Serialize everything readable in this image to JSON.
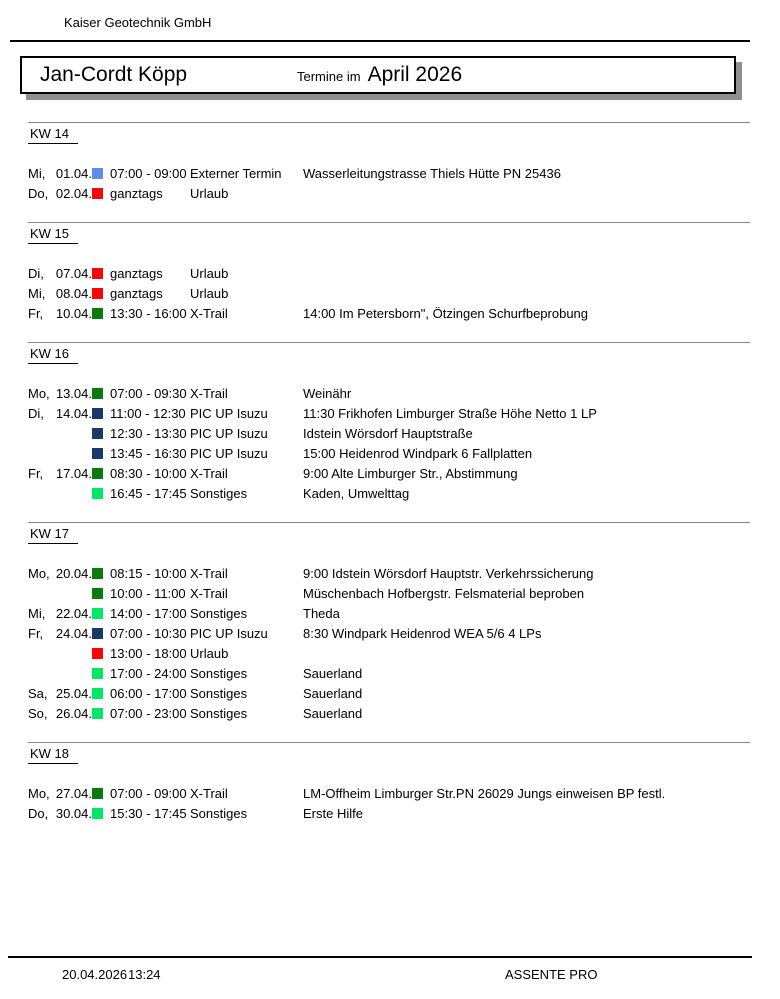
{
  "header": {
    "company": "Kaiser Geotechnik GmbH",
    "person": "Jan-Cordt Köpp",
    "title_prefix": "Termine im",
    "title_month": "April 2026"
  },
  "footer": {
    "print_date": "20.04.2026",
    "print_time": "13:24",
    "app_name": "ASSENTE PRO"
  },
  "colors": {
    "externer_termin": "#5b8dee",
    "urlaub": "#fa0505",
    "x_trail": "#0b7c0b",
    "pic_up_isuzu": "#193a68",
    "sonstiges": "#00e768"
  },
  "weeks": [
    {
      "label": "KW 14",
      "rows": [
        {
          "day": "Mi,",
          "date": "01.04.",
          "color": "externer_termin",
          "time": "07:00 - 09:00",
          "category": "Externer Termin",
          "description": "Wasserleitungstrasse Thiels Hütte PN 25436"
        },
        {
          "day": "Do,",
          "date": "02.04.",
          "color": "urlaub",
          "time": "ganztags",
          "category": "Urlaub",
          "description": ""
        }
      ]
    },
    {
      "label": "KW 15",
      "rows": [
        {
          "day": "Di,",
          "date": "07.04.",
          "color": "urlaub",
          "time": "ganztags",
          "category": "Urlaub",
          "description": ""
        },
        {
          "day": "Mi,",
          "date": "08.04.",
          "color": "urlaub",
          "time": "ganztags",
          "category": "Urlaub",
          "description": ""
        },
        {
          "day": "Fr,",
          "date": "10.04.",
          "color": "x_trail",
          "time": "13:30 - 16:00",
          "category": "X-Trail",
          "description": "14:00 Im Petersborn\", Ötzingen Schurfbeprobung"
        }
      ]
    },
    {
      "label": "KW 16",
      "rows": [
        {
          "day": "Mo,",
          "date": "13.04.",
          "color": "x_trail",
          "time": "07:00 - 09:30",
          "category": "X-Trail",
          "description": "Weinähr"
        },
        {
          "day": "Di,",
          "date": "14.04.",
          "color": "pic_up_isuzu",
          "time": "11:00 - 12:30",
          "category": "PIC UP Isuzu",
          "description": "11:30 Frikhofen Limburger Straße Höhe Netto 1 LP"
        },
        {
          "day": "",
          "date": "",
          "color": "pic_up_isuzu",
          "time": "12:30 - 13:30",
          "category": "PIC UP Isuzu",
          "description": "Idstein Wörsdorf Hauptstraße"
        },
        {
          "day": "",
          "date": "",
          "color": "pic_up_isuzu",
          "time": "13:45 - 16:30",
          "category": "PIC UP Isuzu",
          "description": "15:00 Heidenrod Windpark 6 Fallplatten"
        },
        {
          "day": "Fr,",
          "date": "17.04.",
          "color": "x_trail",
          "time": "08:30 - 10:00",
          "category": "X-Trail",
          "description": "9:00 Alte Limburger Str., Abstimmung"
        },
        {
          "day": "",
          "date": "",
          "color": "sonstiges",
          "time": "16:45 - 17:45",
          "category": "Sonstiges",
          "description": "Kaden, Umwelttag"
        }
      ]
    },
    {
      "label": "KW 17",
      "rows": [
        {
          "day": "Mo,",
          "date": "20.04.",
          "color": "x_trail",
          "time": "08:15 - 10:00",
          "category": "X-Trail",
          "description": "9:00 Idstein Wörsdorf Hauptstr. Verkehrssicherung"
        },
        {
          "day": "",
          "date": "",
          "color": "x_trail",
          "time": "10:00 - 11:00",
          "category": "X-Trail",
          "description": "Müschenbach Hofbergstr. Felsmaterial beproben"
        },
        {
          "day": "Mi,",
          "date": "22.04.",
          "color": "sonstiges",
          "time": "14:00 - 17:00",
          "category": "Sonstiges",
          "description": "Theda"
        },
        {
          "day": "Fr,",
          "date": "24.04.",
          "color": "pic_up_isuzu",
          "time": "07:00 - 10:30",
          "category": "PIC UP Isuzu",
          "description": "8:30 Windpark Heidenrod WEA 5/6 4 LPs"
        },
        {
          "day": "",
          "date": "",
          "color": "urlaub",
          "time": "13:00 - 18:00",
          "category": "Urlaub",
          "description": ""
        },
        {
          "day": "",
          "date": "",
          "color": "sonstiges",
          "time": "17:00 - 24:00",
          "category": "Sonstiges",
          "description": "Sauerland"
        },
        {
          "day": "Sa,",
          "date": "25.04.",
          "color": "sonstiges",
          "time": "06:00 - 17:00",
          "category": "Sonstiges",
          "description": "Sauerland"
        },
        {
          "day": "So,",
          "date": "26.04.",
          "color": "sonstiges",
          "time": "07:00 - 23:00",
          "category": "Sonstiges",
          "description": "Sauerland"
        }
      ]
    },
    {
      "label": "KW 18",
      "rows": [
        {
          "day": "Mo,",
          "date": "27.04.",
          "color": "x_trail",
          "time": "07:00 - 09:00",
          "category": "X-Trail",
          "description": "LM-Offheim Limburger Str.PN 26029 Jungs einweisen BP festl."
        },
        {
          "day": "Do,",
          "date": "30.04.",
          "color": "sonstiges",
          "time": "15:30 - 17:45",
          "category": "Sonstiges",
          "description": "Erste Hilfe"
        }
      ]
    }
  ]
}
